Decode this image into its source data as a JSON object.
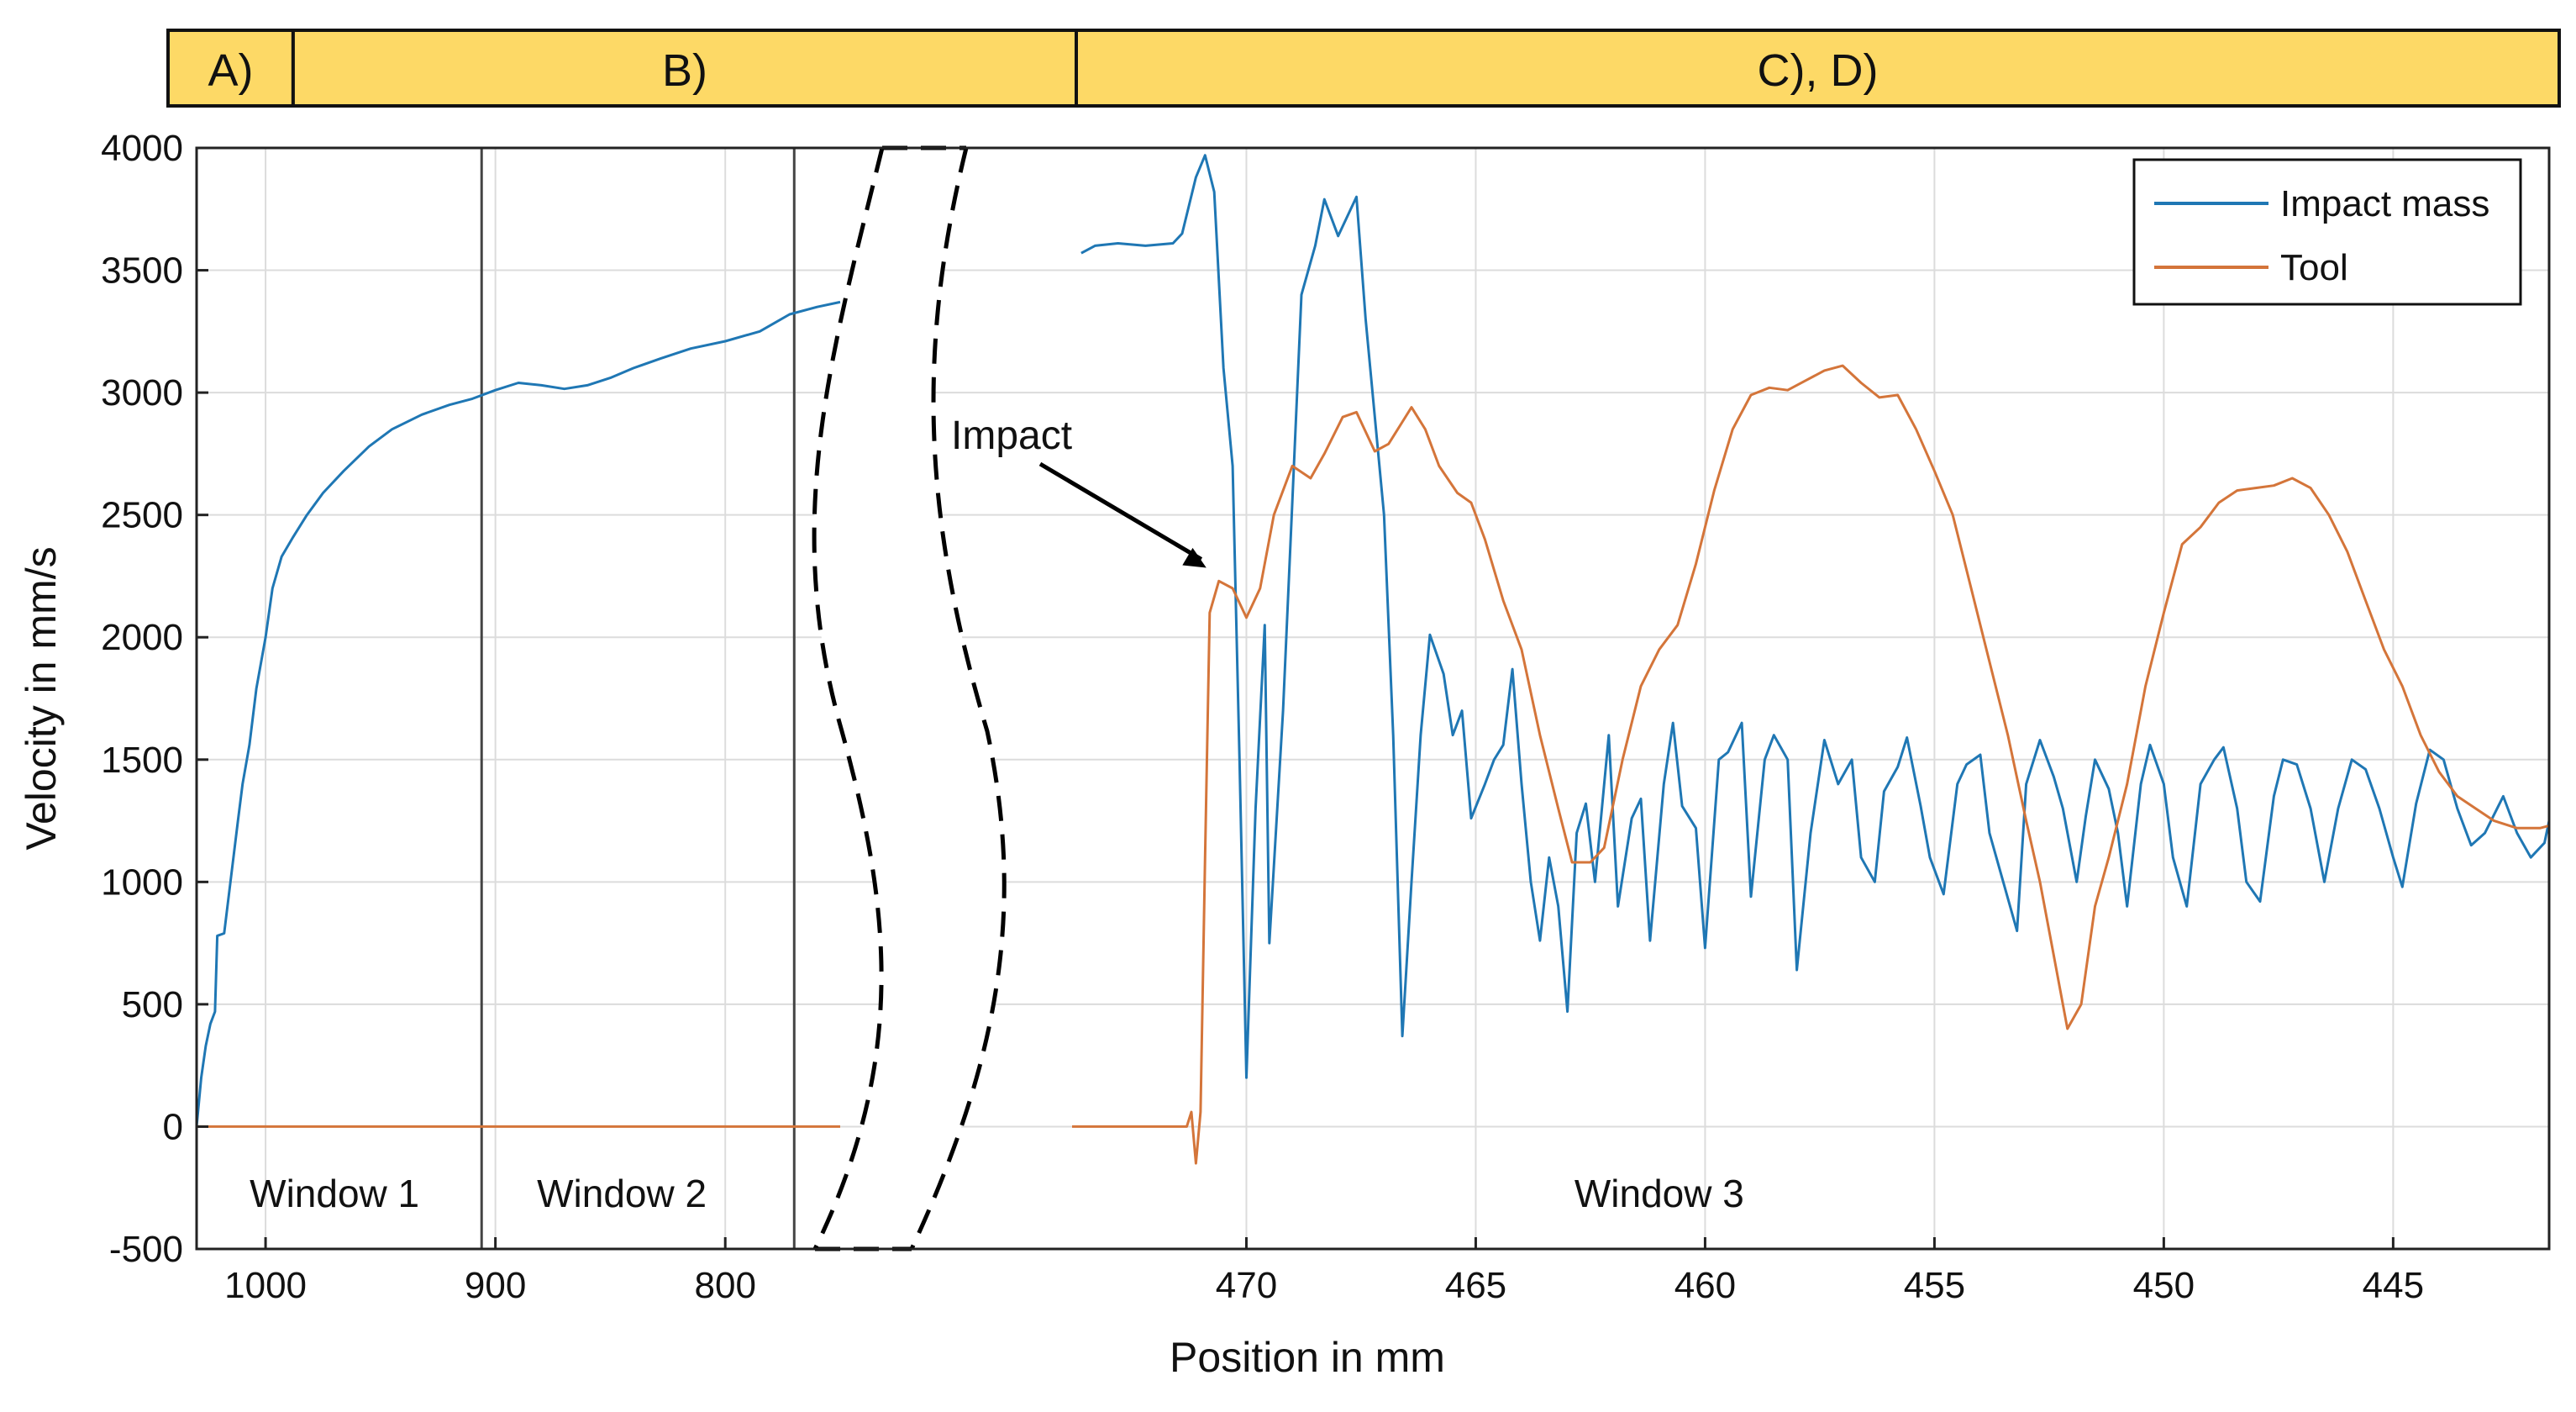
{
  "chart_data": {
    "type": "line",
    "xlabel": "Position in mm",
    "ylabel": "Velocity in mm/s",
    "ylim": [
      -500,
      4000
    ],
    "yticks": [
      -500,
      0,
      500,
      1000,
      1500,
      2000,
      2500,
      3000,
      3500,
      4000
    ],
    "grid": true,
    "legend_position": "top-right",
    "axis_break": "dashed break between position 750 mm and about 473 mm",
    "x_segments": [
      {
        "name": "segment-1",
        "xlim": [
          1030,
          750
        ],
        "xticks": [
          1000,
          900,
          800
        ]
      },
      {
        "name": "segment-2",
        "xlim": [
          473.8,
          441.6
        ],
        "xticks": [
          470,
          465,
          460,
          455,
          450,
          445
        ]
      }
    ],
    "xtick_labels": [
      "1000",
      "900",
      "800",
      "470",
      "465",
      "460",
      "455",
      "450",
      "445"
    ],
    "phases": [
      {
        "label": "A)",
        "from": 1030,
        "to": 988,
        "segment": 0
      },
      {
        "label": "B)",
        "from": 988,
        "to": 750,
        "segment": 0
      },
      {
        "label": "C), D)",
        "from": 750,
        "to": 441.6,
        "segment": 1
      }
    ],
    "windows": [
      {
        "label": "Window 1",
        "center": 970,
        "segment": 0
      },
      {
        "label": "Window 2",
        "center": 845,
        "segment": 0
      },
      {
        "label": "Window 3",
        "center": 461,
        "segment": 1
      }
    ],
    "window_boundaries": [
      {
        "x": 906,
        "segment": 0
      },
      {
        "x": 770,
        "segment": 0
      }
    ],
    "annotation": {
      "text": "Impact",
      "arrow_to": [
        470.8,
        2250
      ]
    },
    "series": [
      {
        "name": "Impact mass",
        "color": "#1f77b4",
        "segment1": [
          [
            1030,
            0
          ],
          [
            1028,
            200
          ],
          [
            1026,
            330
          ],
          [
            1024,
            420
          ],
          [
            1022,
            470
          ],
          [
            1021,
            780
          ],
          [
            1018,
            790
          ],
          [
            1015,
            1020
          ],
          [
            1012,
            1250
          ],
          [
            1010,
            1400
          ],
          [
            1007,
            1560
          ],
          [
            1004,
            1790
          ],
          [
            1000,
            2000
          ],
          [
            997,
            2200
          ],
          [
            993,
            2330
          ],
          [
            988,
            2410
          ],
          [
            982,
            2500
          ],
          [
            975,
            2590
          ],
          [
            966,
            2680
          ],
          [
            955,
            2780
          ],
          [
            945,
            2850
          ],
          [
            932,
            2910
          ],
          [
            920,
            2950
          ],
          [
            910,
            2975
          ],
          [
            900,
            3010
          ],
          [
            890,
            3040
          ],
          [
            880,
            3030
          ],
          [
            870,
            3015
          ],
          [
            860,
            3030
          ],
          [
            850,
            3060
          ],
          [
            840,
            3100
          ],
          [
            828,
            3140
          ],
          [
            815,
            3180
          ],
          [
            800,
            3210
          ],
          [
            785,
            3250
          ],
          [
            772,
            3320
          ],
          [
            760,
            3350
          ],
          [
            750,
            3370
          ]
        ],
        "segment2": [
          [
            473.6,
            3570
          ],
          [
            473.3,
            3600
          ],
          [
            472.8,
            3610
          ],
          [
            472.2,
            3600
          ],
          [
            471.6,
            3610
          ],
          [
            471.4,
            3650
          ],
          [
            471.1,
            3880
          ],
          [
            470.9,
            3970
          ],
          [
            470.7,
            3820
          ],
          [
            470.5,
            3100
          ],
          [
            470.3,
            2700
          ],
          [
            470.15,
            1500
          ],
          [
            470.0,
            200
          ],
          [
            469.8,
            1300
          ],
          [
            469.6,
            2050
          ],
          [
            469.5,
            750
          ],
          [
            469.2,
            1700
          ],
          [
            469.0,
            2550
          ],
          [
            468.8,
            3400
          ],
          [
            468.5,
            3600
          ],
          [
            468.3,
            3790
          ],
          [
            468.0,
            3640
          ],
          [
            467.6,
            3800
          ],
          [
            467.4,
            3300
          ],
          [
            467.0,
            2500
          ],
          [
            466.8,
            1600
          ],
          [
            466.6,
            370
          ],
          [
            466.4,
            1000
          ],
          [
            466.2,
            1600
          ],
          [
            466.0,
            2010
          ],
          [
            465.7,
            1850
          ],
          [
            465.5,
            1600
          ],
          [
            465.3,
            1700
          ],
          [
            465.1,
            1260
          ],
          [
            464.8,
            1400
          ],
          [
            464.6,
            1500
          ],
          [
            464.4,
            1560
          ],
          [
            464.2,
            1870
          ],
          [
            464.0,
            1400
          ],
          [
            463.8,
            1000
          ],
          [
            463.6,
            760
          ],
          [
            463.4,
            1100
          ],
          [
            463.2,
            900
          ],
          [
            463.0,
            470
          ],
          [
            462.8,
            1200
          ],
          [
            462.6,
            1320
          ],
          [
            462.4,
            1000
          ],
          [
            462.1,
            1600
          ],
          [
            461.9,
            900
          ],
          [
            461.6,
            1260
          ],
          [
            461.4,
            1340
          ],
          [
            461.2,
            760
          ],
          [
            460.9,
            1400
          ],
          [
            460.7,
            1650
          ],
          [
            460.5,
            1310
          ],
          [
            460.2,
            1220
          ],
          [
            460.0,
            730
          ],
          [
            459.7,
            1500
          ],
          [
            459.5,
            1530
          ],
          [
            459.2,
            1650
          ],
          [
            459.0,
            940
          ],
          [
            458.7,
            1500
          ],
          [
            458.5,
            1600
          ],
          [
            458.2,
            1500
          ],
          [
            458.0,
            640
          ],
          [
            457.7,
            1200
          ],
          [
            457.4,
            1580
          ],
          [
            457.1,
            1400
          ],
          [
            456.8,
            1500
          ],
          [
            456.6,
            1100
          ],
          [
            456.3,
            1000
          ],
          [
            456.1,
            1370
          ],
          [
            455.8,
            1470
          ],
          [
            455.6,
            1590
          ],
          [
            455.3,
            1310
          ],
          [
            455.1,
            1100
          ],
          [
            454.8,
            950
          ],
          [
            454.5,
            1400
          ],
          [
            454.3,
            1480
          ],
          [
            454.0,
            1520
          ],
          [
            453.8,
            1200
          ],
          [
            453.5,
            1000
          ],
          [
            453.2,
            800
          ],
          [
            453.0,
            1400
          ],
          [
            452.7,
            1580
          ],
          [
            452.4,
            1430
          ],
          [
            452.2,
            1300
          ],
          [
            451.9,
            1000
          ],
          [
            451.7,
            1270
          ],
          [
            451.5,
            1500
          ],
          [
            451.2,
            1380
          ],
          [
            451.0,
            1200
          ],
          [
            450.8,
            900
          ],
          [
            450.5,
            1400
          ],
          [
            450.3,
            1560
          ],
          [
            450.0,
            1400
          ],
          [
            449.8,
            1100
          ],
          [
            449.5,
            900
          ],
          [
            449.2,
            1400
          ],
          [
            448.9,
            1500
          ],
          [
            448.7,
            1550
          ],
          [
            448.4,
            1300
          ],
          [
            448.2,
            1000
          ],
          [
            447.9,
            920
          ],
          [
            447.6,
            1350
          ],
          [
            447.4,
            1500
          ],
          [
            447.1,
            1480
          ],
          [
            446.8,
            1300
          ],
          [
            446.5,
            1000
          ],
          [
            446.2,
            1300
          ],
          [
            445.9,
            1500
          ],
          [
            445.6,
            1460
          ],
          [
            445.3,
            1300
          ],
          [
            445.0,
            1100
          ],
          [
            444.8,
            980
          ],
          [
            444.5,
            1320
          ],
          [
            444.2,
            1540
          ],
          [
            443.9,
            1500
          ],
          [
            443.6,
            1300
          ],
          [
            443.3,
            1150
          ],
          [
            443.0,
            1200
          ],
          [
            442.6,
            1350
          ],
          [
            442.3,
            1200
          ],
          [
            442.0,
            1100
          ],
          [
            441.7,
            1160
          ],
          [
            441.6,
            1250
          ]
        ]
      },
      {
        "name": "Tool",
        "color": "#d4753a",
        "segment1": [
          [
            1030,
            0
          ],
          [
            750,
            0
          ]
        ],
        "segment2": [
          [
            473.8,
            0
          ],
          [
            471.3,
            0
          ],
          [
            471.2,
            60
          ],
          [
            471.1,
            -150
          ],
          [
            471.0,
            60
          ],
          [
            470.9,
            1100
          ],
          [
            470.8,
            2100
          ],
          [
            470.6,
            2230
          ],
          [
            470.3,
            2200
          ],
          [
            470.0,
            2080
          ],
          [
            469.7,
            2200
          ],
          [
            469.4,
            2500
          ],
          [
            469.0,
            2700
          ],
          [
            468.6,
            2650
          ],
          [
            468.3,
            2750
          ],
          [
            467.9,
            2900
          ],
          [
            467.6,
            2920
          ],
          [
            467.2,
            2760
          ],
          [
            466.9,
            2790
          ],
          [
            466.6,
            2880
          ],
          [
            466.4,
            2940
          ],
          [
            466.1,
            2850
          ],
          [
            465.8,
            2700
          ],
          [
            465.4,
            2590
          ],
          [
            465.1,
            2550
          ],
          [
            464.8,
            2400
          ],
          [
            464.4,
            2150
          ],
          [
            464.0,
            1950
          ],
          [
            463.6,
            1600
          ],
          [
            463.2,
            1300
          ],
          [
            462.9,
            1080
          ],
          [
            462.5,
            1080
          ],
          [
            462.2,
            1140
          ],
          [
            461.8,
            1500
          ],
          [
            461.4,
            1800
          ],
          [
            461.0,
            1950
          ],
          [
            460.6,
            2050
          ],
          [
            460.2,
            2300
          ],
          [
            459.8,
            2600
          ],
          [
            459.4,
            2850
          ],
          [
            459.0,
            2990
          ],
          [
            458.6,
            3020
          ],
          [
            458.2,
            3010
          ],
          [
            457.8,
            3050
          ],
          [
            457.4,
            3090
          ],
          [
            457.0,
            3110
          ],
          [
            456.6,
            3040
          ],
          [
            456.2,
            2980
          ],
          [
            455.8,
            2990
          ],
          [
            455.4,
            2850
          ],
          [
            455.0,
            2680
          ],
          [
            454.6,
            2500
          ],
          [
            454.2,
            2200
          ],
          [
            453.8,
            1900
          ],
          [
            453.4,
            1600
          ],
          [
            453.0,
            1250
          ],
          [
            452.7,
            1000
          ],
          [
            452.4,
            700
          ],
          [
            452.1,
            400
          ],
          [
            451.8,
            500
          ],
          [
            451.5,
            900
          ],
          [
            451.2,
            1100
          ],
          [
            450.8,
            1400
          ],
          [
            450.4,
            1800
          ],
          [
            450.0,
            2100
          ],
          [
            449.6,
            2380
          ],
          [
            449.2,
            2450
          ],
          [
            448.8,
            2550
          ],
          [
            448.4,
            2600
          ],
          [
            448.0,
            2610
          ],
          [
            447.6,
            2620
          ],
          [
            447.2,
            2650
          ],
          [
            446.8,
            2610
          ],
          [
            446.4,
            2500
          ],
          [
            446.0,
            2350
          ],
          [
            445.6,
            2150
          ],
          [
            445.2,
            1950
          ],
          [
            444.8,
            1800
          ],
          [
            444.4,
            1600
          ],
          [
            444.0,
            1450
          ],
          [
            443.6,
            1350
          ],
          [
            443.2,
            1300
          ],
          [
            442.8,
            1250
          ],
          [
            442.3,
            1220
          ],
          [
            441.8,
            1220
          ],
          [
            441.6,
            1230
          ]
        ]
      }
    ]
  }
}
